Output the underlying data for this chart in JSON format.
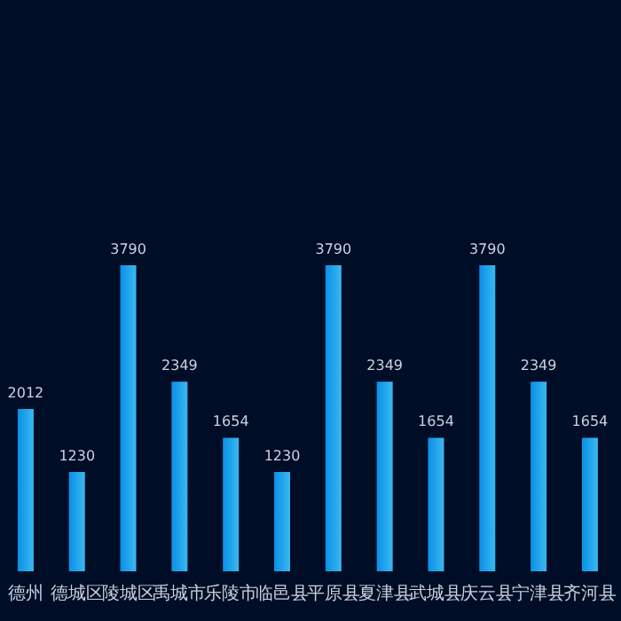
{
  "chart_data": {
    "type": "bar",
    "categories": [
      "德州",
      "德城区",
      "陵城区",
      "禹城市",
      "乐陵市",
      "临邑县",
      "平原县",
      "夏津县",
      "武城县",
      "庆云县",
      "宁津县",
      "齐河县"
    ],
    "values": [
      2012,
      1230,
      3790,
      2349,
      1654,
      1230,
      3790,
      2349,
      1654,
      3790,
      2349,
      1654
    ],
    "color": "#0a8fe6",
    "data_labels": true
  }
}
